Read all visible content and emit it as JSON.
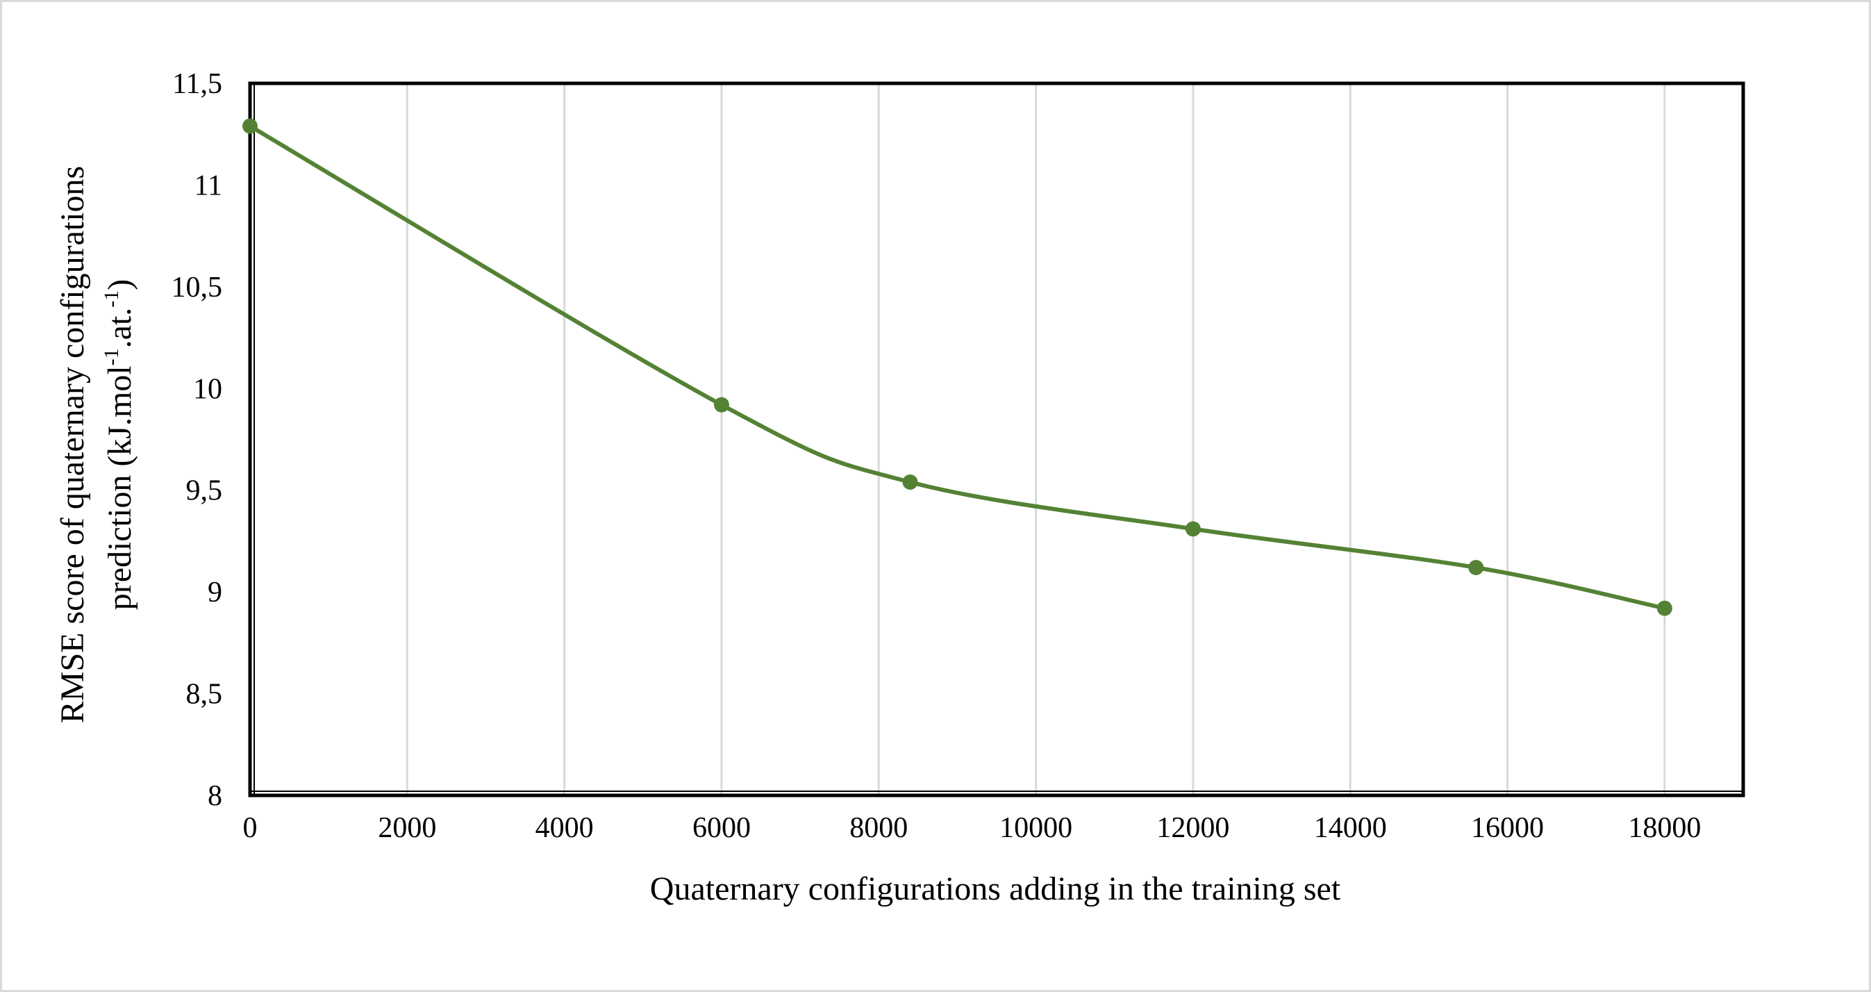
{
  "chart_data": {
    "type": "line",
    "title": "",
    "xlabel": "Quaternary configurations adding in the training set",
    "ylabel": {
      "line1": "RMSE score of quaternary configurations",
      "line2_prefix": "prediction (kJ.mol",
      "line2_sup1": "-1",
      "line2_mid": ".at.",
      "line2_sup2": "-1",
      "line2_suffix": ")"
    },
    "xlim": [
      0,
      19000
    ],
    "ylim": [
      8,
      11.5
    ],
    "x_ticks": [
      "0",
      "2000",
      "4000",
      "6000",
      "8000",
      "10000",
      "12000",
      "14000",
      "16000",
      "18000"
    ],
    "y_ticks": [
      "8",
      "8,5",
      "9",
      "9,5",
      "10",
      "10,5",
      "11",
      "11,5"
    ],
    "grid": "vertical",
    "legend": "none",
    "series": [
      {
        "color": "#548235",
        "smooth": true,
        "x": [
          0,
          6000,
          8400,
          12000,
          15600,
          18000
        ],
        "y": [
          11.29,
          9.92,
          9.54,
          9.31,
          9.12,
          8.92
        ]
      }
    ]
  }
}
